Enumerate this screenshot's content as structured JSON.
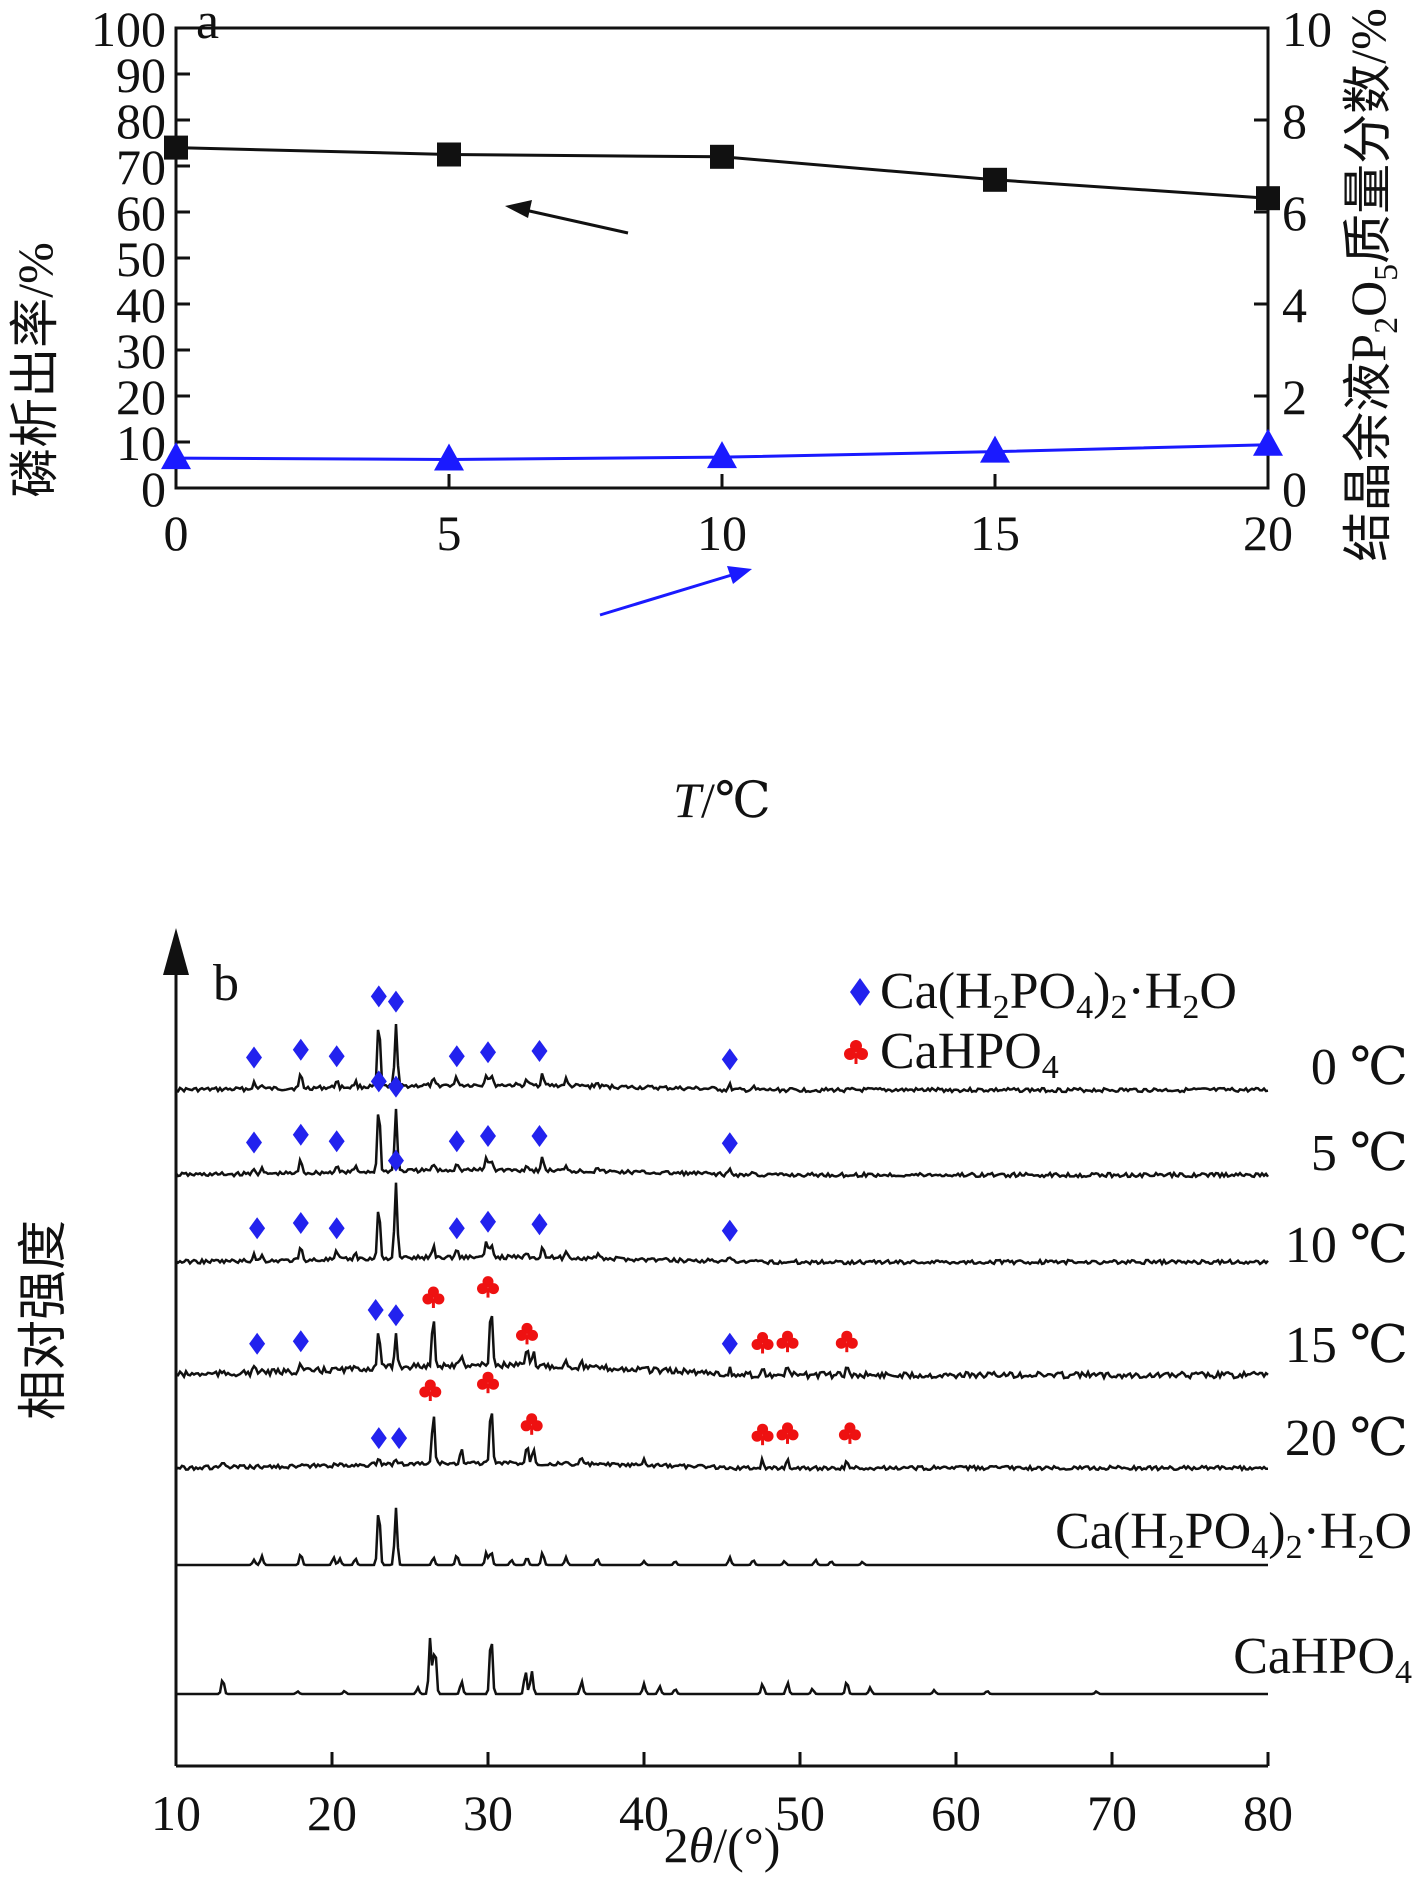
{
  "chart_data": [
    {
      "type": "line",
      "panel_label": "a",
      "xlabel_italic": "T",
      "xlabel_rest": "/℃",
      "ylabel": "磷析出率/%",
      "y2label_pre": "结晶余液P",
      "y2label_sub1": "2",
      "y2label_mid": "O",
      "y2label_sub2": "5",
      "y2label_post": "质量分数/%",
      "xlim": [
        0,
        20
      ],
      "ylim": [
        0,
        100
      ],
      "y2lim": [
        0,
        10
      ],
      "x_ticks": [
        "0",
        "5",
        "10",
        "15",
        "20"
      ],
      "y_ticks": [
        "0",
        "10",
        "20",
        "30",
        "40",
        "50",
        "60",
        "70",
        "80",
        "90",
        "100"
      ],
      "y2_ticks": [
        "0",
        "2",
        "4",
        "6",
        "8",
        "10"
      ],
      "x": [
        0,
        5,
        10,
        15,
        20
      ],
      "series": [
        {
          "axis": "left",
          "marker": "square",
          "color": "#111111",
          "values": [
            74,
            72.5,
            72,
            67,
            63
          ]
        },
        {
          "axis": "right",
          "marker": "triangle",
          "color": "#1a1aff",
          "values": [
            0.65,
            0.62,
            0.67,
            0.79,
            0.94
          ]
        }
      ],
      "grid": false
    },
    {
      "type": "line",
      "panel_label": "b",
      "xlabel_pre": "2",
      "xlabel_italic": "θ",
      "xlabel_post": "/(°)",
      "ylabel": "相对强度",
      "xlim": [
        10,
        80
      ],
      "x_ticks": [
        "10",
        "20",
        "30",
        "40",
        "50",
        "60",
        "70",
        "80"
      ],
      "legend": [
        {
          "marker": "diamond",
          "color": "#2222ee",
          "label_pre": "Ca(H",
          "sub1": "2",
          "label_mid": "PO",
          "sub2": "4",
          "label_close": ")",
          "sub3": "2",
          "label_post": "·H",
          "sub4": "2",
          "label_end": "O"
        },
        {
          "marker": "club",
          "color": "#ee1111",
          "label_pre": "CaHPO",
          "sub1": "4"
        }
      ],
      "traces": [
        {
          "label": "0 ℃",
          "peaks": [
            [
              15,
              0.25
            ],
            [
              15.5,
              0.18
            ],
            [
              18,
              0.55
            ],
            [
              20.3,
              0.3
            ],
            [
              21.5,
              0.2
            ],
            [
              23,
              2.6
            ],
            [
              24.1,
              2.4
            ],
            [
              26.5,
              0.2
            ],
            [
              28,
              0.3
            ],
            [
              29.9,
              0.45
            ],
            [
              30.2,
              0.4
            ],
            [
              32.5,
              0.2
            ],
            [
              33.5,
              0.5
            ],
            [
              35,
              0.25
            ],
            [
              37,
              0.15
            ],
            [
              45.5,
              0.18
            ],
            [
              47,
              0.1
            ]
          ],
          "markers": [
            {
              "type": "diamond",
              "x": 15
            },
            {
              "type": "diamond",
              "x": 18
            },
            {
              "type": "diamond",
              "x": 20.3
            },
            {
              "type": "diamond",
              "x": 23
            },
            {
              "type": "diamond",
              "x": 24.1
            },
            {
              "type": "diamond",
              "x": 28
            },
            {
              "type": "diamond",
              "x": 30
            },
            {
              "type": "diamond",
              "x": 33.3
            },
            {
              "type": "diamond",
              "x": 45.5
            }
          ]
        },
        {
          "label": "5 ℃",
          "peaks": [
            [
              15,
              0.25
            ],
            [
              15.5,
              0.18
            ],
            [
              18,
              0.55
            ],
            [
              20.3,
              0.3
            ],
            [
              21.5,
              0.2
            ],
            [
              23,
              2.6
            ],
            [
              24.1,
              2.4
            ],
            [
              26.5,
              0.25
            ],
            [
              28,
              0.3
            ],
            [
              29.9,
              0.5
            ],
            [
              30.2,
              0.45
            ],
            [
              32.5,
              0.2
            ],
            [
              33.5,
              0.5
            ],
            [
              35,
              0.25
            ],
            [
              37,
              0.2
            ],
            [
              45.5,
              0.22
            ],
            [
              47,
              0.12
            ]
          ],
          "markers": [
            {
              "type": "diamond",
              "x": 15
            },
            {
              "type": "diamond",
              "x": 18
            },
            {
              "type": "diamond",
              "x": 20.3
            },
            {
              "type": "diamond",
              "x": 23
            },
            {
              "type": "diamond",
              "x": 24.1
            },
            {
              "type": "diamond",
              "x": 28
            },
            {
              "type": "diamond",
              "x": 30
            },
            {
              "type": "diamond",
              "x": 33.3
            },
            {
              "type": "diamond",
              "x": 45.5
            }
          ]
        },
        {
          "label": "10 ℃",
          "peaks": [
            [
              15,
              0.3
            ],
            [
              15.5,
              0.2
            ],
            [
              18,
              0.5
            ],
            [
              20.3,
              0.3
            ],
            [
              21.5,
              0.2
            ],
            [
              23,
              2.1
            ],
            [
              24.1,
              2.9
            ],
            [
              26.5,
              0.45
            ],
            [
              28,
              0.3
            ],
            [
              29.9,
              0.55
            ],
            [
              30.2,
              0.5
            ],
            [
              32.5,
              0.25
            ],
            [
              33.5,
              0.45
            ],
            [
              35,
              0.25
            ],
            [
              37,
              0.15
            ],
            [
              45.5,
              0.2
            ]
          ],
          "markers": [
            {
              "type": "diamond",
              "x": 15.2
            },
            {
              "type": "diamond",
              "x": 18
            },
            {
              "type": "diamond",
              "x": 20.3
            },
            {
              "type": "diamond",
              "x": 24.1
            },
            {
              "type": "diamond",
              "x": 28
            },
            {
              "type": "diamond",
              "x": 30
            },
            {
              "type": "diamond",
              "x": 33.3
            },
            {
              "type": "diamond",
              "x": 45.5
            }
          ]
        },
        {
          "label": "15 ℃",
          "peaks": [
            [
              15,
              0.2
            ],
            [
              15.5,
              0.15
            ],
            [
              18,
              0.3
            ],
            [
              23,
              1.5
            ],
            [
              24.1,
              1.3
            ],
            [
              26.5,
              2.0
            ],
            [
              28.3,
              0.4
            ],
            [
              30.2,
              2.4
            ],
            [
              32.5,
              0.6
            ],
            [
              32.9,
              0.5
            ],
            [
              35,
              0.2
            ],
            [
              36,
              0.2
            ],
            [
              40,
              0.15
            ],
            [
              45.5,
              0.2
            ],
            [
              47.6,
              0.25
            ],
            [
              49.2,
              0.3
            ],
            [
              53,
              0.3
            ]
          ],
          "markers": [
            {
              "type": "diamond",
              "x": 15.2
            },
            {
              "type": "diamond",
              "x": 18
            },
            {
              "type": "diamond",
              "x": 22.8
            },
            {
              "type": "diamond",
              "x": 24.1
            },
            {
              "type": "club",
              "x": 26.5
            },
            {
              "type": "club",
              "x": 30
            },
            {
              "type": "club",
              "x": 32.5
            },
            {
              "type": "diamond",
              "x": 45.5
            },
            {
              "type": "club",
              "x": 47.6
            },
            {
              "type": "club",
              "x": 49.2
            },
            {
              "type": "club",
              "x": 53
            }
          ]
        },
        {
          "label": "20 ℃",
          "peaks": [
            [
              13,
              0.2
            ],
            [
              23,
              0.15
            ],
            [
              24.1,
              0.15
            ],
            [
              26.5,
              2.0
            ],
            [
              28.3,
              0.5
            ],
            [
              30.2,
              2.3
            ],
            [
              32.5,
              0.7
            ],
            [
              32.9,
              0.6
            ],
            [
              36,
              0.25
            ],
            [
              40,
              0.2
            ],
            [
              47.6,
              0.3
            ],
            [
              49.2,
              0.35
            ],
            [
              53,
              0.35
            ]
          ],
          "markers": [
            {
              "type": "diamond",
              "x": 23
            },
            {
              "type": "diamond",
              "x": 24.3
            },
            {
              "type": "club",
              "x": 26.3
            },
            {
              "type": "club",
              "x": 30
            },
            {
              "type": "club",
              "x": 32.8
            },
            {
              "type": "club",
              "x": 47.6
            },
            {
              "type": "club",
              "x": 49.2
            },
            {
              "type": "club",
              "x": 53.2
            }
          ]
        },
        {
          "label_pre": "Ca(H",
          "sub1": "2",
          "label_mid": "PO",
          "sub2": "4",
          "label_close": ")",
          "sub3": "2",
          "label_post": "·H",
          "sub4": "2",
          "label_end": "O",
          "reference": true,
          "peaks": [
            [
              15,
              0.2
            ],
            [
              15.5,
              0.35
            ],
            [
              18,
              0.45
            ],
            [
              20.1,
              0.3
            ],
            [
              20.5,
              0.25
            ],
            [
              21.5,
              0.25
            ],
            [
              23,
              2.3
            ],
            [
              24.1,
              2.2
            ],
            [
              26.5,
              0.3
            ],
            [
              28,
              0.4
            ],
            [
              29.9,
              0.5
            ],
            [
              30.2,
              0.55
            ],
            [
              31.5,
              0.2
            ],
            [
              32.5,
              0.3
            ],
            [
              33.5,
              0.5
            ],
            [
              35,
              0.3
            ],
            [
              37,
              0.25
            ],
            [
              40,
              0.15
            ],
            [
              42,
              0.15
            ],
            [
              45.5,
              0.3
            ],
            [
              47,
              0.2
            ],
            [
              49,
              0.15
            ],
            [
              51,
              0.2
            ],
            [
              52,
              0.15
            ],
            [
              54,
              0.12
            ]
          ]
        },
        {
          "label_pre": "CaHPO",
          "sub1": "4",
          "reference": true,
          "peaks": [
            [
              13,
              0.6
            ],
            [
              17.8,
              0.1
            ],
            [
              20.8,
              0.12
            ],
            [
              25.5,
              0.25
            ],
            [
              26.3,
              2.2
            ],
            [
              26.6,
              1.9
            ],
            [
              28.3,
              0.5
            ],
            [
              30.2,
              2.4
            ],
            [
              32.4,
              0.9
            ],
            [
              32.8,
              0.9
            ],
            [
              36,
              0.5
            ],
            [
              40,
              0.4
            ],
            [
              41,
              0.3
            ],
            [
              42,
              0.2
            ],
            [
              47.6,
              0.4
            ],
            [
              49.2,
              0.45
            ],
            [
              50.8,
              0.2
            ],
            [
              53,
              0.5
            ],
            [
              54.5,
              0.25
            ],
            [
              58.6,
              0.15
            ],
            [
              62,
              0.12
            ],
            [
              69,
              0.1
            ]
          ]
        }
      ],
      "grid": false
    }
  ]
}
